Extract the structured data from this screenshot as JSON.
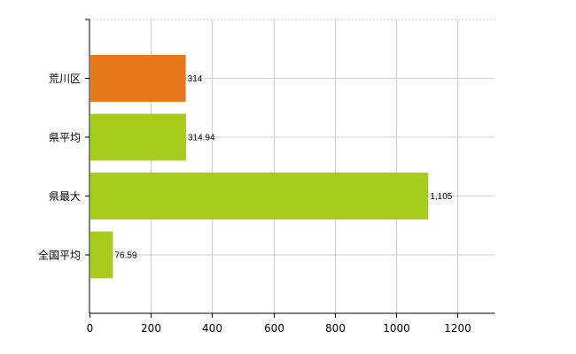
{
  "chart_data": {
    "type": "bar",
    "orientation": "horizontal",
    "title": "",
    "xlabel": "",
    "ylabel": "",
    "categories": [
      "荒川区",
      "県平均",
      "県最大",
      "全国平均"
    ],
    "values": [
      314,
      314.94,
      1105,
      76.59
    ],
    "value_labels": [
      "314",
      "314.94",
      "1,105",
      "76.59"
    ],
    "bar_colors": [
      "#e57a1c",
      "#a8cc1c",
      "#a8cc1c",
      "#a8cc1c"
    ],
    "xlim": [
      0,
      1320
    ],
    "xticks": [
      0,
      200,
      400,
      600,
      800,
      1000,
      1200
    ],
    "xtick_labels": [
      "0",
      "200",
      "400",
      "600",
      "800",
      "1000",
      "1200"
    ],
    "grid": true,
    "legend": "none"
  }
}
